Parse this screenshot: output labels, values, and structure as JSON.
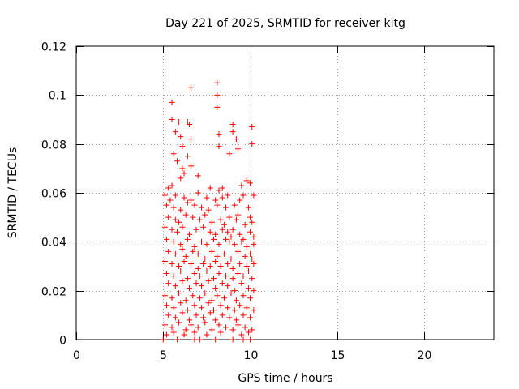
{
  "chart_data": {
    "type": "scatter",
    "title": "Day 221 of 2025, SRMTID for receiver kitg",
    "xlabel": "GPS time / hours",
    "ylabel": "SRMTID / TECUs",
    "xlim": [
      0,
      24
    ],
    "ylim": [
      0,
      0.12
    ],
    "xticks": [
      0,
      5,
      10,
      15,
      20
    ],
    "xtick_labels": [
      "0",
      "5",
      "10",
      "15",
      "20"
    ],
    "yticks": [
      0,
      0.02,
      0.04,
      0.06,
      0.08,
      0.1,
      0.12
    ],
    "ytick_labels": [
      "0",
      "0.02",
      "0.04",
      "0.06",
      "0.08",
      "0.1",
      "0.12"
    ],
    "grid": true,
    "marker": "+",
    "color": "#ff0000",
    "series": [
      {
        "name": "SRMTID",
        "points": [
          [
            5.5,
            0.097
          ],
          [
            5.5,
            0.09
          ],
          [
            5.7,
            0.085
          ],
          [
            5.9,
            0.089
          ],
          [
            6.0,
            0.083
          ],
          [
            6.1,
            0.079
          ],
          [
            6.4,
            0.089
          ],
          [
            6.5,
            0.088
          ],
          [
            6.6,
            0.103
          ],
          [
            6.6,
            0.082
          ],
          [
            8.1,
            0.105
          ],
          [
            8.1,
            0.1
          ],
          [
            8.1,
            0.095
          ],
          [
            8.2,
            0.084
          ],
          [
            8.2,
            0.079
          ],
          [
            9.0,
            0.088
          ],
          [
            9.0,
            0.085
          ],
          [
            9.2,
            0.082
          ],
          [
            9.3,
            0.078
          ],
          [
            10.1,
            0.087
          ],
          [
            10.1,
            0.08
          ],
          [
            8.8,
            0.076
          ],
          [
            5.6,
            0.076
          ],
          [
            5.8,
            0.073
          ],
          [
            6.1,
            0.07
          ],
          [
            6.2,
            0.068
          ],
          [
            6.4,
            0.075
          ],
          [
            6.6,
            0.071
          ],
          [
            7.0,
            0.067
          ],
          [
            5.5,
            0.063
          ],
          [
            5.3,
            0.062
          ],
          [
            6.0,
            0.066
          ],
          [
            7.7,
            0.062
          ],
          [
            8.2,
            0.061
          ],
          [
            8.4,
            0.062
          ],
          [
            9.5,
            0.063
          ],
          [
            9.8,
            0.065
          ],
          [
            10.0,
            0.064
          ],
          [
            5.1,
            0.059
          ],
          [
            5.4,
            0.057
          ],
          [
            5.7,
            0.059
          ],
          [
            6.2,
            0.058
          ],
          [
            6.6,
            0.057
          ],
          [
            7.0,
            0.06
          ],
          [
            7.5,
            0.058
          ],
          [
            8.0,
            0.057
          ],
          [
            8.4,
            0.058
          ],
          [
            8.7,
            0.059
          ],
          [
            9.4,
            0.057
          ],
          [
            9.6,
            0.059
          ],
          [
            10.2,
            0.059
          ],
          [
            5.2,
            0.055
          ],
          [
            5.6,
            0.054
          ],
          [
            6.0,
            0.053
          ],
          [
            6.4,
            0.056
          ],
          [
            6.8,
            0.055
          ],
          [
            7.2,
            0.054
          ],
          [
            7.6,
            0.053
          ],
          [
            8.1,
            0.055
          ],
          [
            8.6,
            0.054
          ],
          [
            9.1,
            0.055
          ],
          [
            9.3,
            0.051
          ],
          [
            9.9,
            0.054
          ],
          [
            10.0,
            0.05
          ],
          [
            5.3,
            0.05
          ],
          [
            5.7,
            0.049
          ],
          [
            5.9,
            0.048
          ],
          [
            6.3,
            0.051
          ],
          [
            6.7,
            0.05
          ],
          [
            7.1,
            0.049
          ],
          [
            7.4,
            0.051
          ],
          [
            7.8,
            0.048
          ],
          [
            8.3,
            0.049
          ],
          [
            8.5,
            0.047
          ],
          [
            8.8,
            0.05
          ],
          [
            9.2,
            0.049
          ],
          [
            9.7,
            0.047
          ],
          [
            10.1,
            0.048
          ],
          [
            5.1,
            0.046
          ],
          [
            5.5,
            0.045
          ],
          [
            5.8,
            0.044
          ],
          [
            6.1,
            0.046
          ],
          [
            6.5,
            0.043
          ],
          [
            6.9,
            0.045
          ],
          [
            7.3,
            0.046
          ],
          [
            7.7,
            0.044
          ],
          [
            8.0,
            0.043
          ],
          [
            8.4,
            0.045
          ],
          [
            8.7,
            0.044
          ],
          [
            8.9,
            0.042
          ],
          [
            9.0,
            0.045
          ],
          [
            9.4,
            0.043
          ],
          [
            9.6,
            0.041
          ],
          [
            10.0,
            0.044
          ],
          [
            10.2,
            0.042
          ],
          [
            5.2,
            0.041
          ],
          [
            5.6,
            0.04
          ],
          [
            6.0,
            0.039
          ],
          [
            6.4,
            0.041
          ],
          [
            6.8,
            0.038
          ],
          [
            7.2,
            0.04
          ],
          [
            7.5,
            0.039
          ],
          [
            7.9,
            0.041
          ],
          [
            8.2,
            0.039
          ],
          [
            8.6,
            0.041
          ],
          [
            8.8,
            0.04
          ],
          [
            9.1,
            0.039
          ],
          [
            9.5,
            0.04
          ],
          [
            9.8,
            0.038
          ],
          [
            10.2,
            0.039
          ],
          [
            5.3,
            0.036
          ],
          [
            5.7,
            0.035
          ],
          [
            6.1,
            0.037
          ],
          [
            6.3,
            0.034
          ],
          [
            6.7,
            0.036
          ],
          [
            7.0,
            0.035
          ],
          [
            7.4,
            0.033
          ],
          [
            7.8,
            0.036
          ],
          [
            8.1,
            0.034
          ],
          [
            8.5,
            0.035
          ],
          [
            8.9,
            0.033
          ],
          [
            9.3,
            0.036
          ],
          [
            9.7,
            0.034
          ],
          [
            10.0,
            0.035
          ],
          [
            10.1,
            0.033
          ],
          [
            5.1,
            0.032
          ],
          [
            5.5,
            0.031
          ],
          [
            5.9,
            0.03
          ],
          [
            6.2,
            0.032
          ],
          [
            6.6,
            0.031
          ],
          [
            7.0,
            0.029
          ],
          [
            7.3,
            0.031
          ],
          [
            7.7,
            0.03
          ],
          [
            8.0,
            0.032
          ],
          [
            8.3,
            0.03
          ],
          [
            8.7,
            0.031
          ],
          [
            9.0,
            0.029
          ],
          [
            9.4,
            0.031
          ],
          [
            9.8,
            0.03
          ],
          [
            10.2,
            0.031
          ],
          [
            5.2,
            0.027
          ],
          [
            5.6,
            0.026
          ],
          [
            6.0,
            0.028
          ],
          [
            6.4,
            0.025
          ],
          [
            6.8,
            0.027
          ],
          [
            7.1,
            0.026
          ],
          [
            7.5,
            0.028
          ],
          [
            7.9,
            0.025
          ],
          [
            8.2,
            0.027
          ],
          [
            8.6,
            0.026
          ],
          [
            9.0,
            0.025
          ],
          [
            9.3,
            0.027
          ],
          [
            9.6,
            0.026
          ],
          [
            9.9,
            0.028
          ],
          [
            10.1,
            0.025
          ],
          [
            5.3,
            0.023
          ],
          [
            5.7,
            0.022
          ],
          [
            6.1,
            0.024
          ],
          [
            6.5,
            0.021
          ],
          [
            6.9,
            0.023
          ],
          [
            7.2,
            0.022
          ],
          [
            7.6,
            0.024
          ],
          [
            8.0,
            0.021
          ],
          [
            8.4,
            0.023
          ],
          [
            8.7,
            0.022
          ],
          [
            9.1,
            0.02
          ],
          [
            9.5,
            0.023
          ],
          [
            9.9,
            0.021
          ],
          [
            10.2,
            0.02
          ],
          [
            5.1,
            0.018
          ],
          [
            5.5,
            0.017
          ],
          [
            5.9,
            0.019
          ],
          [
            6.3,
            0.016
          ],
          [
            6.7,
            0.018
          ],
          [
            7.1,
            0.017
          ],
          [
            7.4,
            0.019
          ],
          [
            7.8,
            0.016
          ],
          [
            8.1,
            0.018
          ],
          [
            8.5,
            0.017
          ],
          [
            8.9,
            0.019
          ],
          [
            9.2,
            0.016
          ],
          [
            9.6,
            0.018
          ],
          [
            10.0,
            0.017
          ],
          [
            5.2,
            0.014
          ],
          [
            5.6,
            0.013
          ],
          [
            6.0,
            0.015
          ],
          [
            6.4,
            0.012
          ],
          [
            6.8,
            0.014
          ],
          [
            7.2,
            0.013
          ],
          [
            7.6,
            0.015
          ],
          [
            7.9,
            0.012
          ],
          [
            8.3,
            0.014
          ],
          [
            8.7,
            0.013
          ],
          [
            9.1,
            0.012
          ],
          [
            9.4,
            0.014
          ],
          [
            9.8,
            0.013
          ],
          [
            10.2,
            0.012
          ],
          [
            5.3,
            0.01
          ],
          [
            5.7,
            0.009
          ],
          [
            6.1,
            0.011
          ],
          [
            6.5,
            0.008
          ],
          [
            6.9,
            0.01
          ],
          [
            7.3,
            0.009
          ],
          [
            7.7,
            0.011
          ],
          [
            8.0,
            0.008
          ],
          [
            8.4,
            0.01
          ],
          [
            8.8,
            0.009
          ],
          [
            9.2,
            0.008
          ],
          [
            9.6,
            0.01
          ],
          [
            10.0,
            0.009
          ],
          [
            5.1,
            0.006
          ],
          [
            5.5,
            0.005
          ],
          [
            5.9,
            0.007
          ],
          [
            6.3,
            0.004
          ],
          [
            6.6,
            0.006
          ],
          [
            7.0,
            0.005
          ],
          [
            7.4,
            0.007
          ],
          [
            7.8,
            0.004
          ],
          [
            8.2,
            0.006
          ],
          [
            8.6,
            0.005
          ],
          [
            9.0,
            0.004
          ],
          [
            9.3,
            0.006
          ],
          [
            9.7,
            0.005
          ],
          [
            10.1,
            0.004
          ],
          [
            5.2,
            0.002
          ],
          [
            5.6,
            0.003
          ],
          [
            6.2,
            0.002
          ],
          [
            6.8,
            0.003
          ],
          [
            7.5,
            0.002
          ],
          [
            8.3,
            0.003
          ],
          [
            9.5,
            0.002
          ],
          [
            9.9,
            0.003
          ],
          [
            5.0,
            0.0
          ],
          [
            6.8,
            0.0
          ],
          [
            7.1,
            0.0
          ],
          [
            8.0,
            0.0
          ],
          [
            9.0,
            0.0
          ],
          [
            9.6,
            0.0
          ],
          [
            10.0,
            0.0
          ],
          [
            5.8,
            0.0
          ]
        ]
      }
    ]
  }
}
